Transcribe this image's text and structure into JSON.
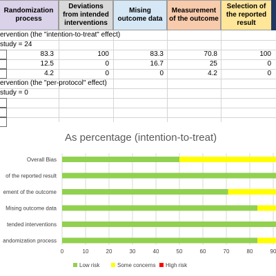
{
  "headers": [
    {
      "label": "Randomization process",
      "color": "#d9d2e9"
    },
    {
      "label": "Deviations from intended interventions",
      "color": "#d9d9d9"
    },
    {
      "label": "Mising outcome data",
      "color": "#d6e7f5"
    },
    {
      "label": "Measurement of the outcome",
      "color": "#f8cbad"
    },
    {
      "label": "Selection of the reported result",
      "color": "#ffe699"
    }
  ],
  "sheet": {
    "itt_title": "ervention (the \"intention-to-treat\" effect)",
    "itt_count": "study = 24",
    "itt_rows": [
      [
        "83.3",
        "100",
        "83.3",
        "70.8",
        "100"
      ],
      [
        "12.5",
        "0",
        "16.7",
        "25",
        "0"
      ],
      [
        "4.2",
        "0",
        "0",
        "4.2",
        "0"
      ]
    ],
    "pp_title": "ervention (the \"per-protocol\" effect)",
    "pp_count": "study = 0"
  },
  "chart_data": {
    "type": "bar",
    "stacked": true,
    "orientation": "horizontal",
    "title": "As percentage (intention-to-treat)",
    "categories": [
      "Overall Bias",
      "of the reported result",
      "ement of the outcome",
      "Mising outcome data",
      "tended interventions",
      "andomization process"
    ],
    "series": [
      {
        "name": "Low risk",
        "color": "#92d050",
        "values": [
          50,
          100,
          70.8,
          83.3,
          100,
          83.3
        ]
      },
      {
        "name": "Some concerns",
        "color": "#ffff00",
        "values": [
          50,
          0,
          25,
          16.7,
          0,
          12.5
        ]
      },
      {
        "name": "High risk",
        "color": "#ff0000",
        "values": [
          0,
          0,
          4.2,
          0,
          0,
          4.2
        ]
      }
    ],
    "x_ticks": [
      "0",
      "10",
      "20",
      "30",
      "40",
      "50",
      "60",
      "70",
      "80",
      "90"
    ],
    "xlim": [
      0,
      100
    ],
    "grid": true,
    "legend": "bottom"
  }
}
